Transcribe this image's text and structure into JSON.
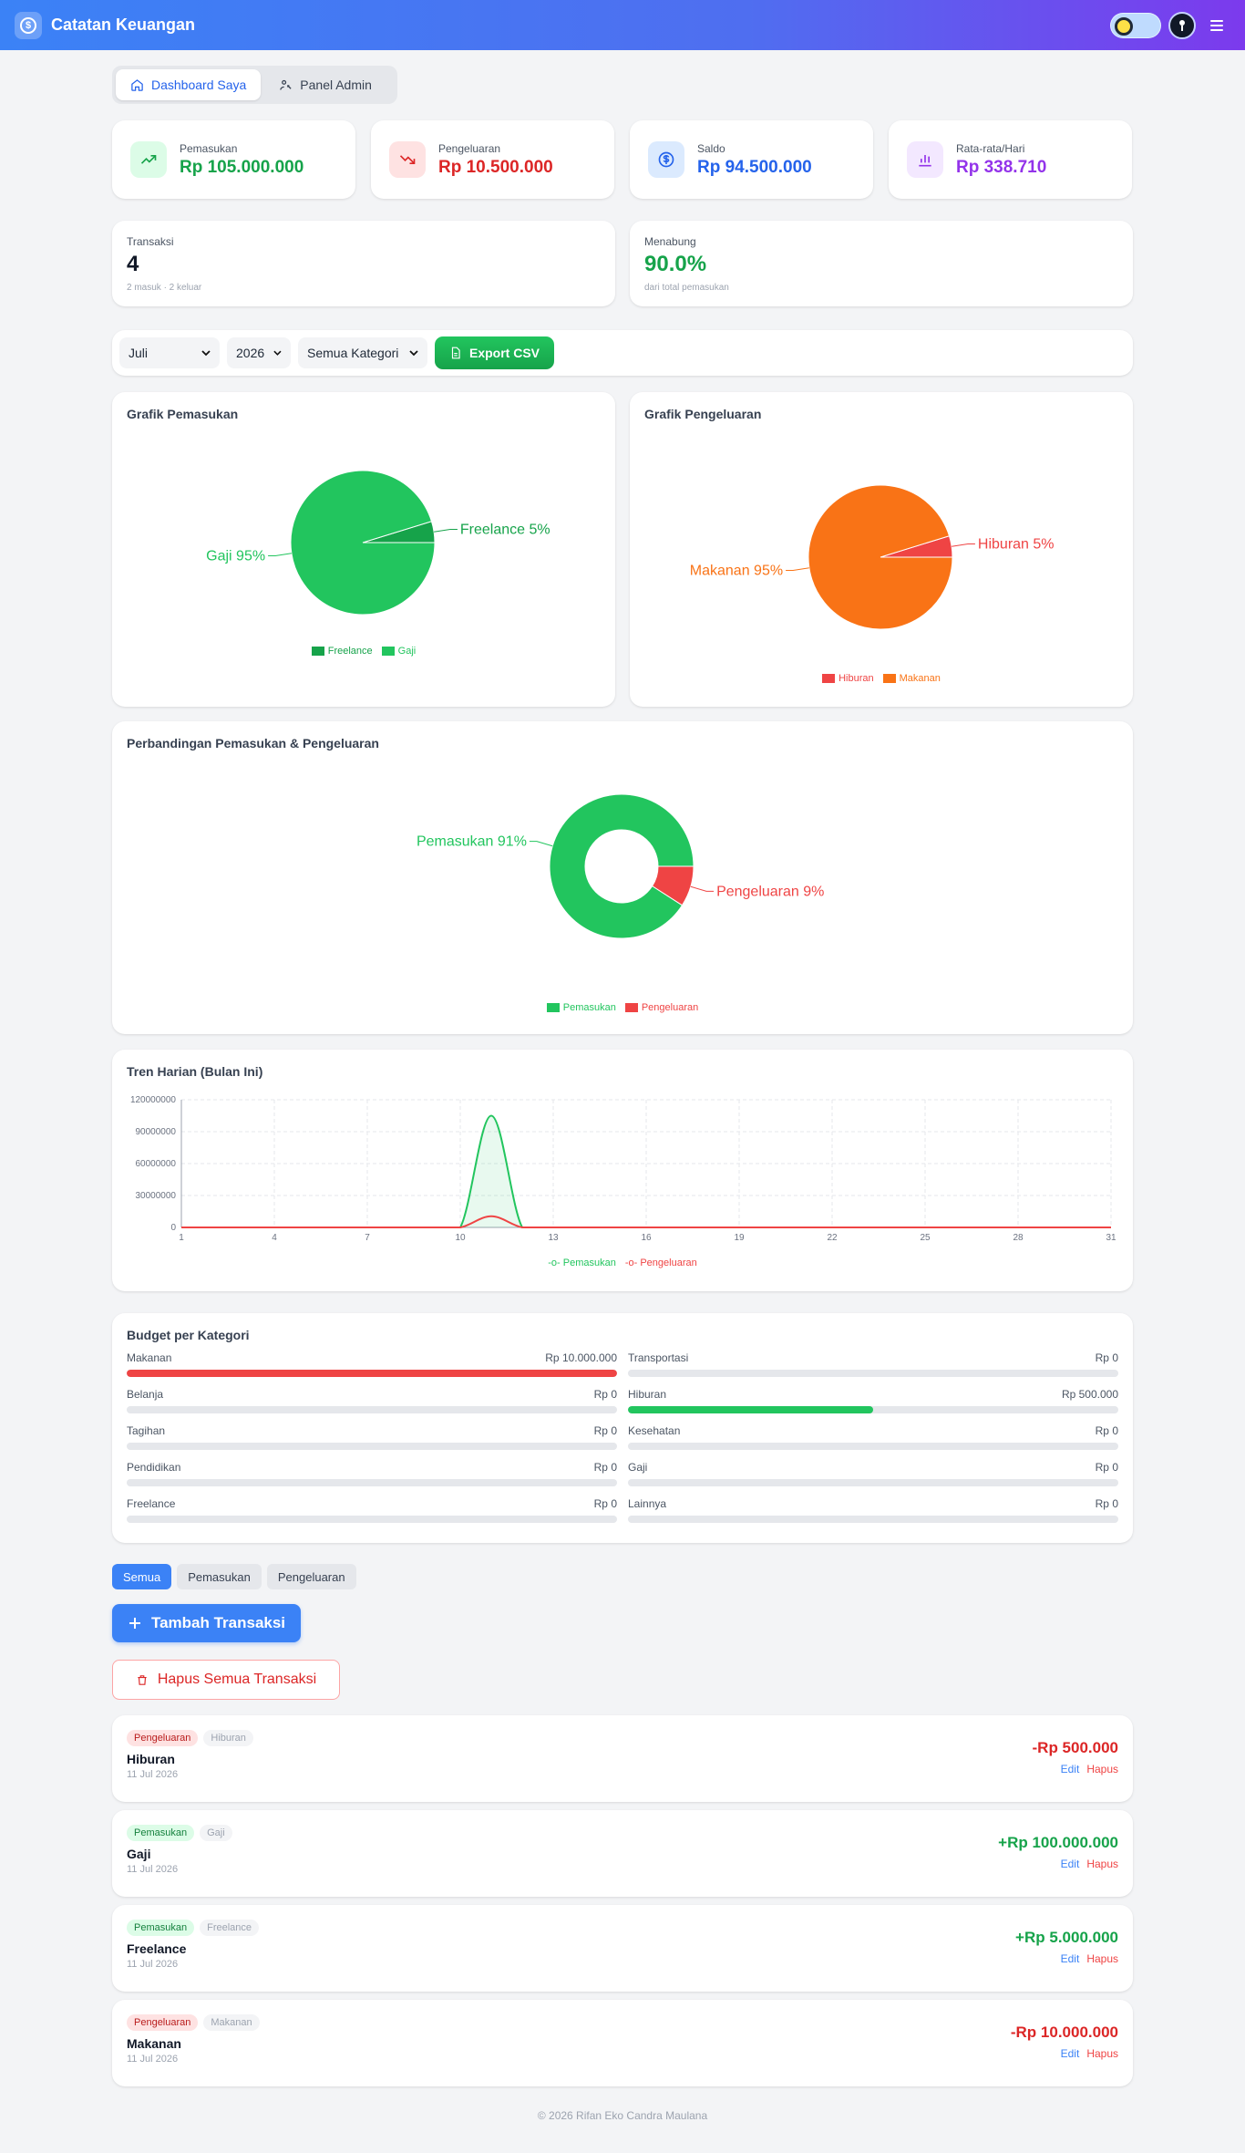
{
  "app": {
    "title": "Catatan Keuangan"
  },
  "nav_tabs": [
    {
      "label": "Dashboard Saya",
      "icon": "home-icon",
      "active": true
    },
    {
      "label": "Panel Admin",
      "icon": "admin-icon",
      "active": false
    }
  ],
  "stats": [
    {
      "label": "Pemasukan",
      "value": "Rp 105.000.000",
      "icon": "trending-up-icon",
      "color": "#16a34a",
      "bg": "#dcfce7"
    },
    {
      "label": "Pengeluaran",
      "value": "Rp 10.500.000",
      "icon": "trending-down-icon",
      "color": "#dc2626",
      "bg": "#fee2e2"
    },
    {
      "label": "Saldo",
      "value": "Rp 94.500.000",
      "icon": "dollar-icon",
      "color": "#2563eb",
      "bg": "#dbeafe"
    },
    {
      "label": "Rata-rata/Hari",
      "value": "Rp 338.710",
      "icon": "bar-chart-icon",
      "color": "#9333ea",
      "bg": "#f3e8ff"
    }
  ],
  "summary": {
    "transaksi": {
      "label": "Transaksi",
      "value": "4",
      "sub": "2 masuk · 2 keluar"
    },
    "menabung": {
      "label": "Menabung",
      "value": "90.0%",
      "sub": "dari total pemasukan"
    }
  },
  "filters": {
    "month": "Juli",
    "year": "2026",
    "category": "Semua Kategori",
    "export_label": "Export CSV"
  },
  "charts_meta": {
    "income_title": "Grafik Pemasukan",
    "expense_title": "Grafik Pengeluaran",
    "compare_title": "Perbandingan Pemasukan & Pengeluaran",
    "trend_title": "Tren Harian (Bulan Ini)"
  },
  "chart_data": [
    {
      "type": "pie",
      "title": "Grafik Pemasukan",
      "categories": [
        "Freelance",
        "Gaji"
      ],
      "values": [
        5000000,
        100000000
      ],
      "percent_labels": [
        "Freelance 5%",
        "Gaji 95%"
      ],
      "colors": [
        "#16a34a",
        "#22c55e"
      ],
      "legend": "bottom"
    },
    {
      "type": "pie",
      "title": "Grafik Pengeluaran",
      "categories": [
        "Hiburan",
        "Makanan"
      ],
      "values": [
        500000,
        10000000
      ],
      "percent_labels": [
        "Hiburan 5%",
        "Makanan 95%"
      ],
      "colors": [
        "#ef4444",
        "#f97316"
      ],
      "legend": "bottom"
    },
    {
      "type": "pie",
      "title": "Perbandingan Pemasukan & Pengeluaran",
      "categories": [
        "Pemasukan",
        "Pengeluaran"
      ],
      "values": [
        105000000,
        10500000
      ],
      "percent_labels": [
        "Pemasukan 91%",
        "Pengeluaran 9%"
      ],
      "colors": [
        "#22c55e",
        "#ef4444"
      ],
      "donut": true,
      "legend": "bottom"
    },
    {
      "type": "line",
      "title": "Tren Harian (Bulan Ini)",
      "x": [
        1,
        2,
        3,
        4,
        5,
        6,
        7,
        8,
        9,
        10,
        11,
        12,
        13,
        14,
        15,
        16,
        17,
        18,
        19,
        20,
        21,
        22,
        23,
        24,
        25,
        26,
        27,
        28,
        29,
        30,
        31
      ],
      "x_ticks": [
        1,
        4,
        7,
        10,
        13,
        16,
        19,
        22,
        25,
        28,
        31
      ],
      "y_ticks": [
        "0",
        "30000000",
        "60000000",
        "90000000",
        "120000000"
      ],
      "ylim": [
        0,
        120000000
      ],
      "series": [
        {
          "name": "Pemasukan",
          "color": "#22c55e",
          "values": [
            0,
            0,
            0,
            0,
            0,
            0,
            0,
            0,
            0,
            0,
            105000000,
            0,
            0,
            0,
            0,
            0,
            0,
            0,
            0,
            0,
            0,
            0,
            0,
            0,
            0,
            0,
            0,
            0,
            0,
            0,
            0
          ]
        },
        {
          "name": "Pengeluaran",
          "color": "#ef4444",
          "values": [
            0,
            0,
            0,
            0,
            0,
            0,
            0,
            0,
            0,
            0,
            10500000,
            0,
            0,
            0,
            0,
            0,
            0,
            0,
            0,
            0,
            0,
            0,
            0,
            0,
            0,
            0,
            0,
            0,
            0,
            0,
            0
          ]
        }
      ],
      "grid": true,
      "legend": "bottom"
    }
  ],
  "budget": {
    "title": "Budget per Kategori",
    "items": [
      {
        "name": "Makanan",
        "amount": "Rp 10.000.000",
        "fill": 1.0,
        "color": "#ef4444"
      },
      {
        "name": "Transportasi",
        "amount": "Rp 0",
        "fill": 0,
        "color": "#22c55e"
      },
      {
        "name": "Belanja",
        "amount": "Rp 0",
        "fill": 0,
        "color": "#22c55e"
      },
      {
        "name": "Hiburan",
        "amount": "Rp 500.000",
        "fill": 0.5,
        "color": "#22c55e"
      },
      {
        "name": "Tagihan",
        "amount": "Rp 0",
        "fill": 0,
        "color": "#22c55e"
      },
      {
        "name": "Kesehatan",
        "amount": "Rp 0",
        "fill": 0,
        "color": "#22c55e"
      },
      {
        "name": "Pendidikan",
        "amount": "Rp 0",
        "fill": 0,
        "color": "#22c55e"
      },
      {
        "name": "Gaji",
        "amount": "Rp 0",
        "fill": 0,
        "color": "#22c55e"
      },
      {
        "name": "Freelance",
        "amount": "Rp 0",
        "fill": 0,
        "color": "#22c55e"
      },
      {
        "name": "Lainnya",
        "amount": "Rp 0",
        "fill": 0,
        "color": "#22c55e"
      }
    ]
  },
  "tx_filters": [
    {
      "label": "Semua",
      "active": true
    },
    {
      "label": "Pemasukan",
      "active": false
    },
    {
      "label": "Pengeluaran",
      "active": false
    }
  ],
  "actions": {
    "add": "Tambah Transaksi",
    "clear": "Hapus Semua Transaksi"
  },
  "transactions": [
    {
      "type": "Pengeluaran",
      "kind": "out",
      "category": "Hiburan",
      "name": "Hiburan",
      "date": "11 Jul 2026",
      "amount": "-Rp 500.000",
      "edit": "Edit",
      "delete": "Hapus"
    },
    {
      "type": "Pemasukan",
      "kind": "in",
      "category": "Gaji",
      "name": "Gaji",
      "date": "11 Jul 2026",
      "amount": "+Rp 100.000.000",
      "edit": "Edit",
      "delete": "Hapus"
    },
    {
      "type": "Pemasukan",
      "kind": "in",
      "category": "Freelance",
      "name": "Freelance",
      "date": "11 Jul 2026",
      "amount": "+Rp 5.000.000",
      "edit": "Edit",
      "delete": "Hapus"
    },
    {
      "type": "Pengeluaran",
      "kind": "out",
      "category": "Makanan",
      "name": "Makanan",
      "date": "11 Jul 2026",
      "amount": "-Rp 10.000.000",
      "edit": "Edit",
      "delete": "Hapus"
    }
  ],
  "footer": "© 2026 Rifan Eko Candra Maulana"
}
